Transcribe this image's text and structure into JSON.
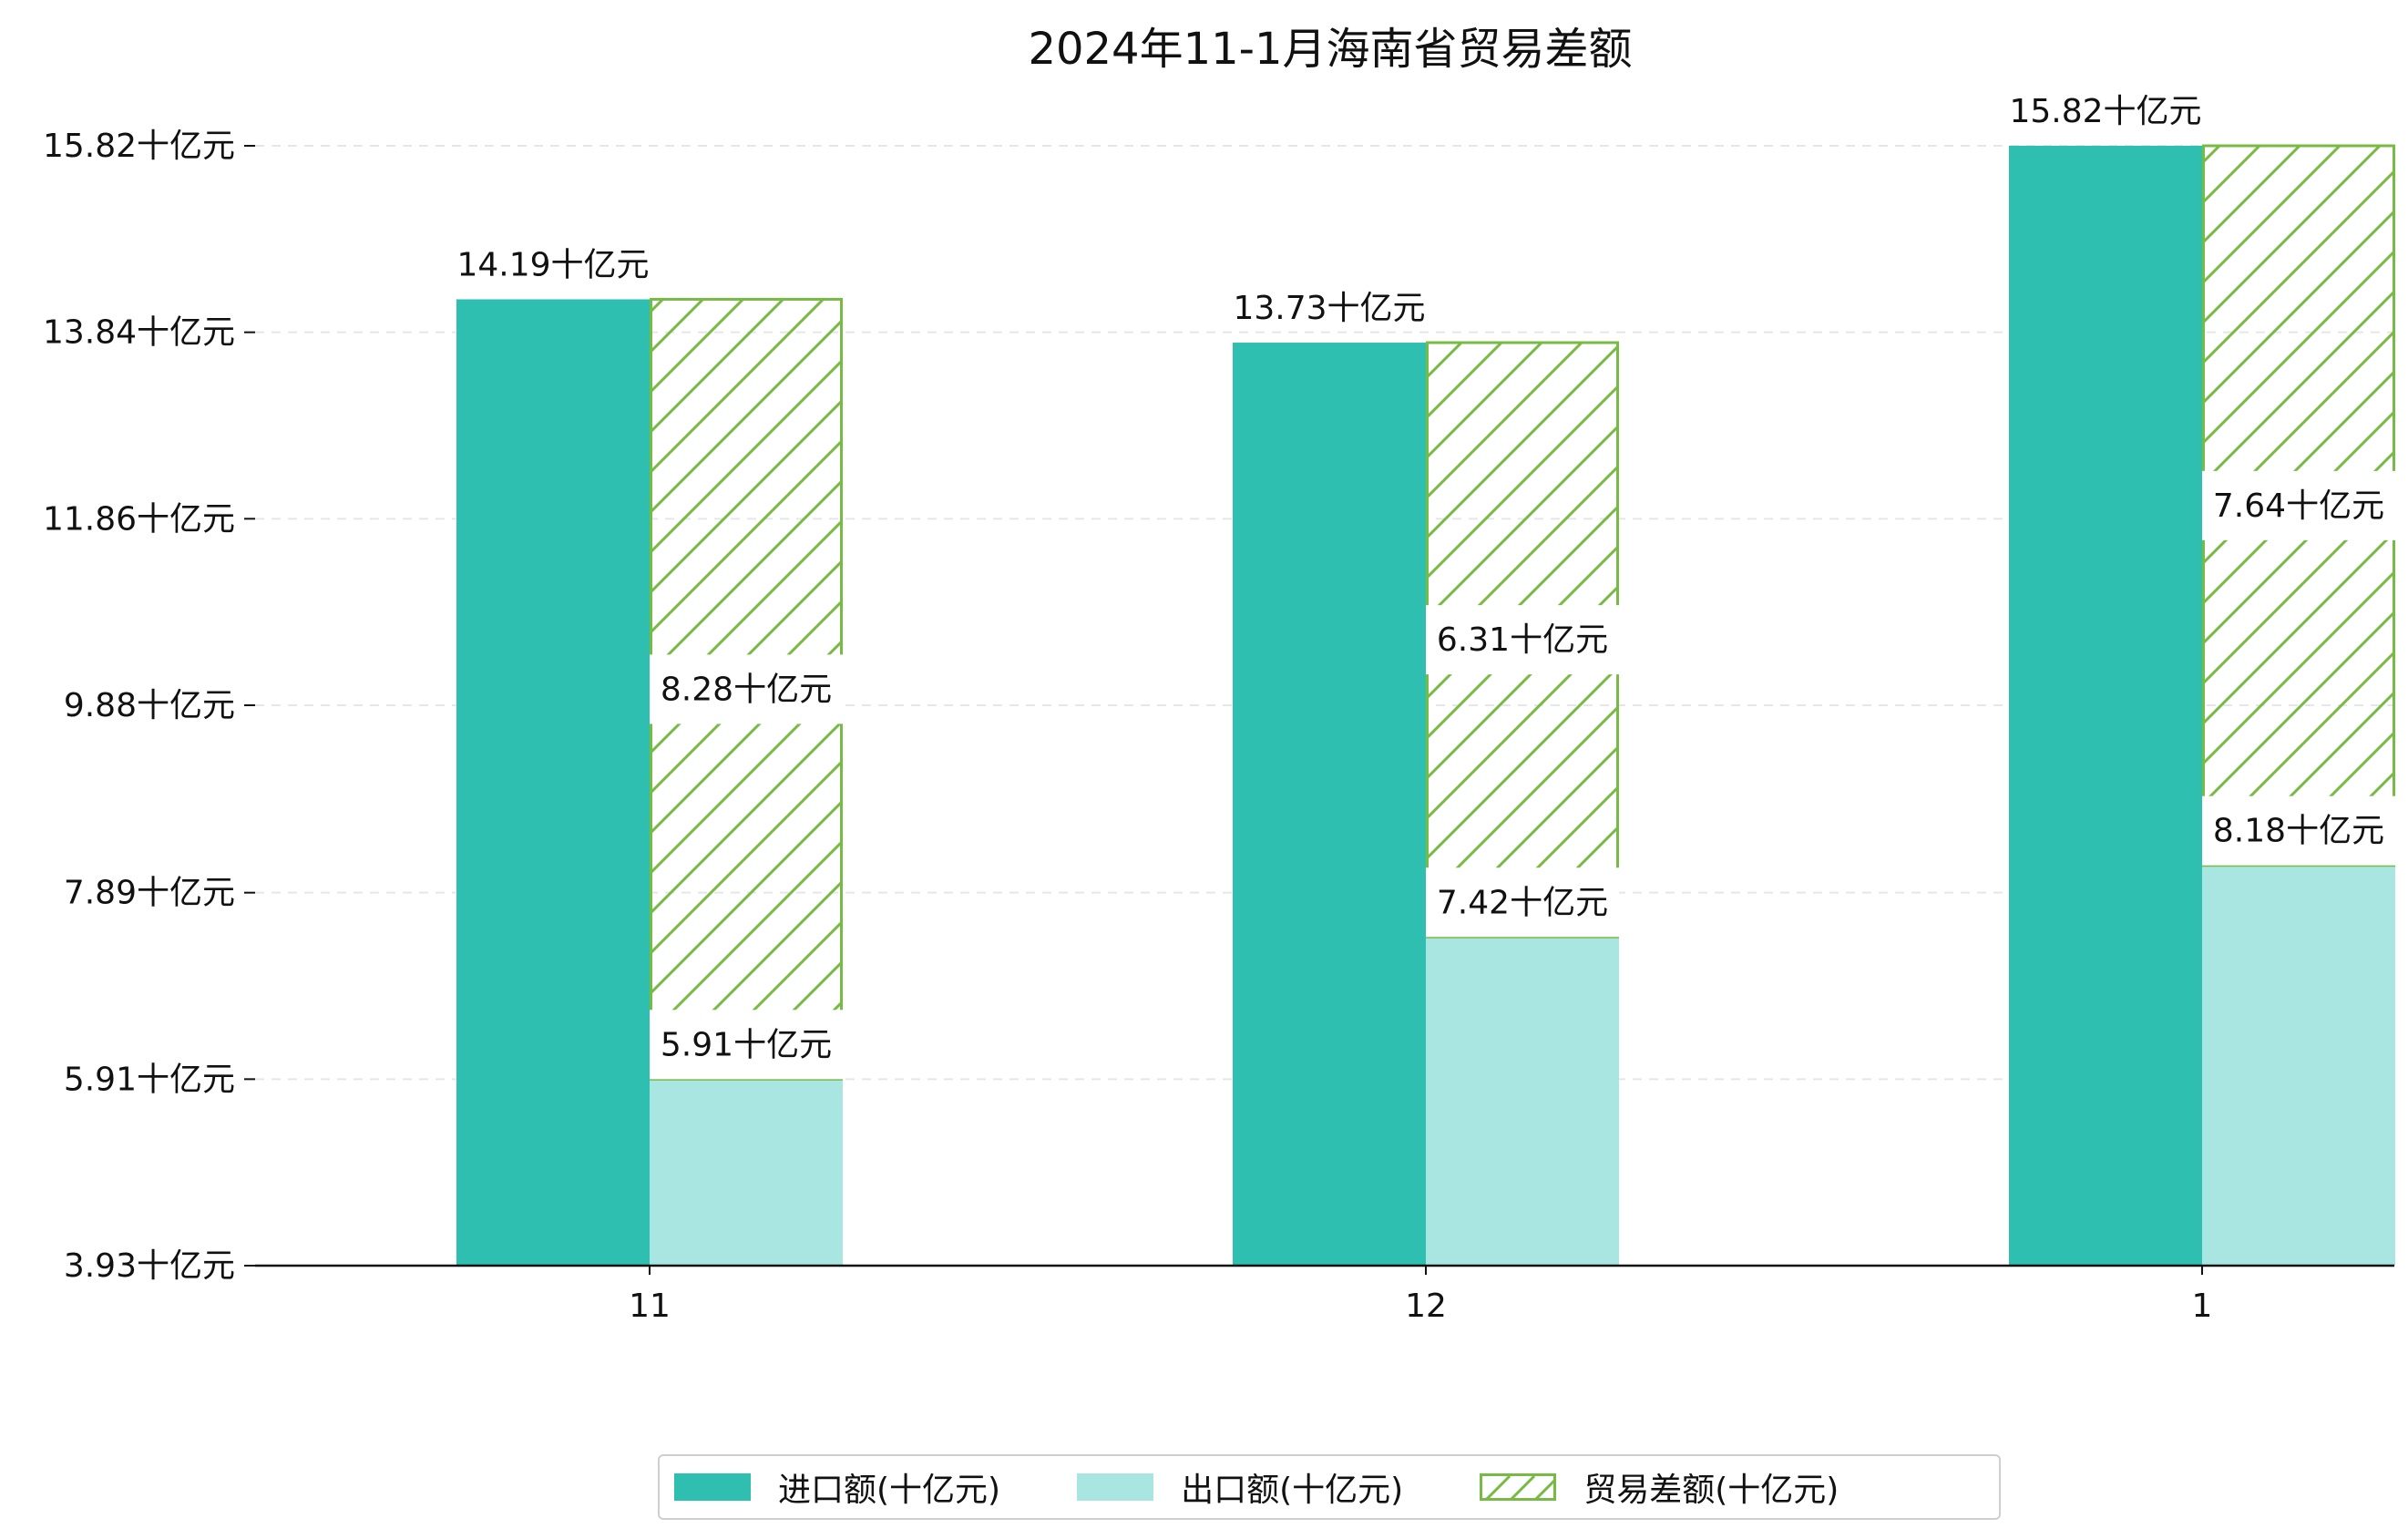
{
  "chart_data": {
    "type": "bar",
    "title": "2024年11-1月海南省贸易差额",
    "categories": [
      "11",
      "12",
      "1"
    ],
    "series": [
      {
        "name": "进口额(十亿元)",
        "values": [
          14.19,
          13.73,
          15.82
        ],
        "color": "#2fbfb1",
        "labels": [
          "14.19十亿元",
          "13.73十亿元",
          "15.82十亿元"
        ]
      },
      {
        "name": "出口额(十亿元)",
        "values": [
          5.91,
          7.42,
          8.18
        ],
        "color": "#a9e6e1",
        "labels": [
          "5.91十亿元",
          "7.42十亿元",
          "8.18十亿元"
        ]
      },
      {
        "name": "贸易差额(十亿元)",
        "values": [
          8.28,
          6.31,
          7.64
        ],
        "color": "#77bb44",
        "pattern": "hatch",
        "labels": [
          "8.28十亿元",
          "6.31十亿元",
          "7.64十亿元"
        ]
      }
    ],
    "yticks": [
      "3.93十亿元",
      "5.91十亿元",
      "7.89十亿元",
      "9.88十亿元",
      "11.86十亿元",
      "13.84十亿元",
      "15.82十亿元"
    ],
    "ytick_values": [
      3.93,
      5.91,
      7.89,
      9.88,
      11.86,
      13.84,
      15.82
    ],
    "ylim": [
      3.93,
      15.82
    ],
    "grid": true,
    "legend_position": "bottom-center"
  }
}
